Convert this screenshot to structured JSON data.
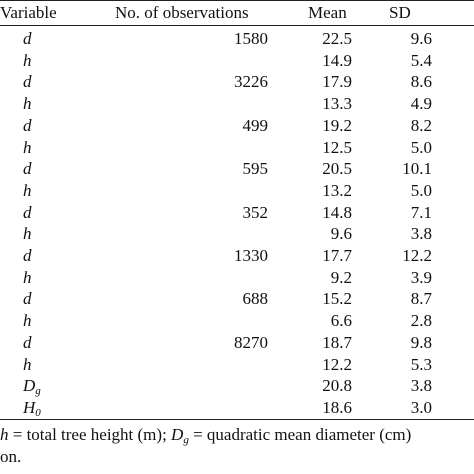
{
  "table": {
    "headers": {
      "variable": "Variable",
      "observations": "No. of observations",
      "mean": "Mean",
      "sd": "SD"
    },
    "rows": [
      {
        "var": "d",
        "sub": "",
        "obs": "1580",
        "mean": "22.5",
        "sd": "9.6"
      },
      {
        "var": "h",
        "sub": "",
        "obs": "",
        "mean": "14.9",
        "sd": "5.4"
      },
      {
        "var": "d",
        "sub": "",
        "obs": "3226",
        "mean": "17.9",
        "sd": "8.6"
      },
      {
        "var": "h",
        "sub": "",
        "obs": "",
        "mean": "13.3",
        "sd": "4.9"
      },
      {
        "var": "d",
        "sub": "",
        "obs": "499",
        "mean": "19.2",
        "sd": "8.2"
      },
      {
        "var": "h",
        "sub": "",
        "obs": "",
        "mean": "12.5",
        "sd": "5.0"
      },
      {
        "var": "d",
        "sub": "",
        "obs": "595",
        "mean": "20.5",
        "sd": "10.1"
      },
      {
        "var": "h",
        "sub": "",
        "obs": "",
        "mean": "13.2",
        "sd": "5.0"
      },
      {
        "var": "d",
        "sub": "",
        "obs": "352",
        "mean": "14.8",
        "sd": "7.1"
      },
      {
        "var": "h",
        "sub": "",
        "obs": "",
        "mean": "9.6",
        "sd": "3.8"
      },
      {
        "var": "d",
        "sub": "",
        "obs": "1330",
        "mean": "17.7",
        "sd": "12.2"
      },
      {
        "var": "h",
        "sub": "",
        "obs": "",
        "mean": "9.2",
        "sd": "3.9"
      },
      {
        "var": "d",
        "sub": "",
        "obs": "688",
        "mean": "15.2",
        "sd": "8.7"
      },
      {
        "var": "h",
        "sub": "",
        "obs": "",
        "mean": "6.6",
        "sd": "2.8"
      },
      {
        "var": "d",
        "sub": "",
        "obs": "8270",
        "mean": "18.7",
        "sd": "9.8"
      },
      {
        "var": "h",
        "sub": "",
        "obs": "",
        "mean": "12.2",
        "sd": "5.3"
      },
      {
        "var": "D",
        "sub": "g",
        "obs": "",
        "mean": "20.8",
        "sd": "3.8"
      },
      {
        "var": "H",
        "sub": "0",
        "obs": "",
        "mean": "18.6",
        "sd": "3.0"
      }
    ]
  },
  "footnote": {
    "line1_sym1": "h",
    "line1_text1": " = total tree height (m); ",
    "line1_sym2": "D",
    "line1_sub2": "g",
    "line1_text2": " = quadratic mean diameter (cm)",
    "line2": "on."
  }
}
